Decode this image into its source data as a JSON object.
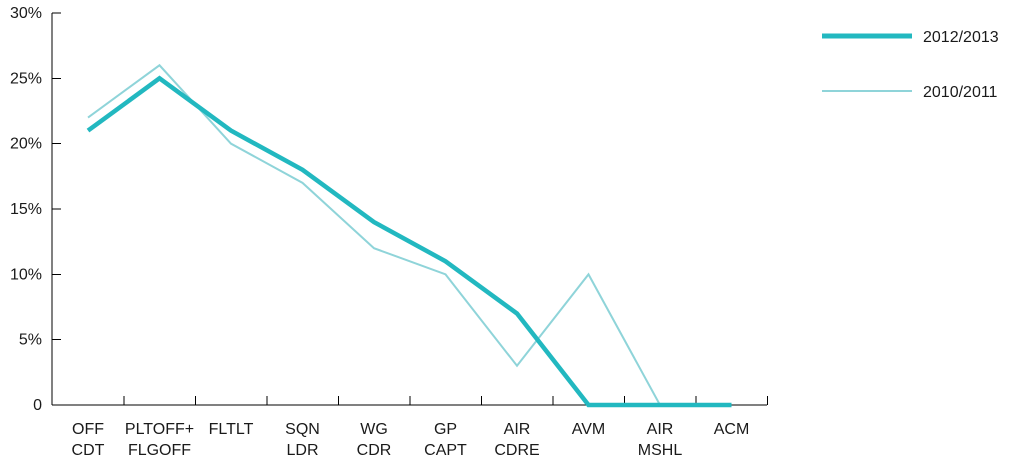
{
  "chart_data": {
    "type": "line",
    "categories": [
      [
        "OFF",
        "CDT"
      ],
      [
        "PLTOFF+",
        "FLGOFF"
      ],
      [
        "FLTLT"
      ],
      [
        "SQN",
        "LDR"
      ],
      [
        "WG",
        "CDR"
      ],
      [
        "GP",
        "CAPT"
      ],
      [
        "AIR",
        "CDRE"
      ],
      [
        "AVM"
      ],
      [
        "AIR",
        "MSHL"
      ],
      [
        "ACM"
      ]
    ],
    "y_ticks": [
      {
        "value": 0,
        "label": "0"
      },
      {
        "value": 5,
        "label": "5%"
      },
      {
        "value": 10,
        "label": "10%"
      },
      {
        "value": 15,
        "label": "15%"
      },
      {
        "value": 20,
        "label": "20%"
      },
      {
        "value": 25,
        "label": "25%"
      },
      {
        "value": 30,
        "label": "30%"
      }
    ],
    "ylim": [
      0,
      30
    ],
    "grid": false,
    "legend_position": "top-right",
    "series": [
      {
        "name": "2012/2013",
        "color": "#22b8c0",
        "weight": "thick",
        "values": [
          21,
          25,
          21,
          18,
          14,
          11,
          7,
          0,
          0,
          0
        ]
      },
      {
        "name": "2010/2011",
        "color": "#8fd4d9",
        "weight": "thin",
        "values": [
          22,
          26,
          20,
          17,
          12,
          10,
          3,
          10,
          0,
          0
        ]
      }
    ]
  }
}
